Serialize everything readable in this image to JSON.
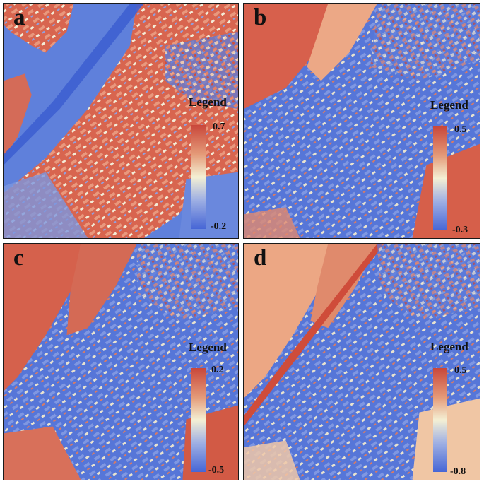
{
  "figure": {
    "panels": [
      {
        "id": "a",
        "label": "a",
        "legend_title": "Legend",
        "legend_max": "0.7",
        "legend_min": "-0.2"
      },
      {
        "id": "b",
        "label": "b",
        "legend_title": "Legend",
        "legend_max": "0.5",
        "legend_min": "-0.3"
      },
      {
        "id": "c",
        "label": "c",
        "legend_title": "Legend",
        "legend_max": "0.2",
        "legend_min": "-0.5"
      },
      {
        "id": "d",
        "label": "d",
        "legend_title": "Legend",
        "legend_max": "0.5",
        "legend_min": "-0.8"
      }
    ],
    "colormap": {
      "high": "#c9473a",
      "mid": "#f4f0d4",
      "low": "#4666d6"
    }
  }
}
